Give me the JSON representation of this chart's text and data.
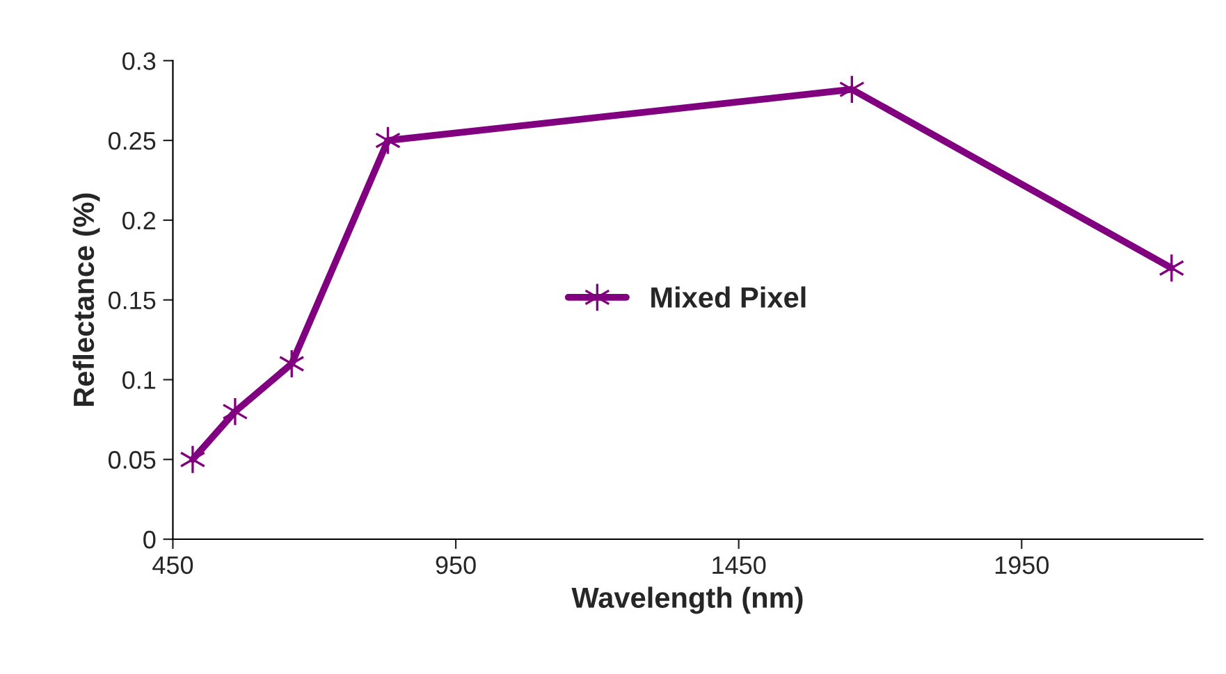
{
  "chart_data": {
    "type": "line",
    "xlabel": "Wavelength (nm)",
    "ylabel": "Reflectance (%)",
    "x": [
      485,
      560,
      660,
      830,
      1650,
      2215
    ],
    "series": [
      {
        "name": "Mixed Pixel",
        "color": "#800080",
        "values": [
          0.05,
          0.08,
          0.11,
          0.25,
          0.282,
          0.17
        ]
      }
    ],
    "xlim": [
      450,
      2270
    ],
    "xticks": [
      450,
      950,
      1450,
      1950
    ],
    "ylim": [
      0,
      0.3
    ],
    "yticks": [
      0,
      0.05,
      0.1,
      0.15,
      0.2,
      0.25,
      0.3
    ],
    "grid": false,
    "legend": "center",
    "marker": "cross",
    "line_style": "solid"
  }
}
